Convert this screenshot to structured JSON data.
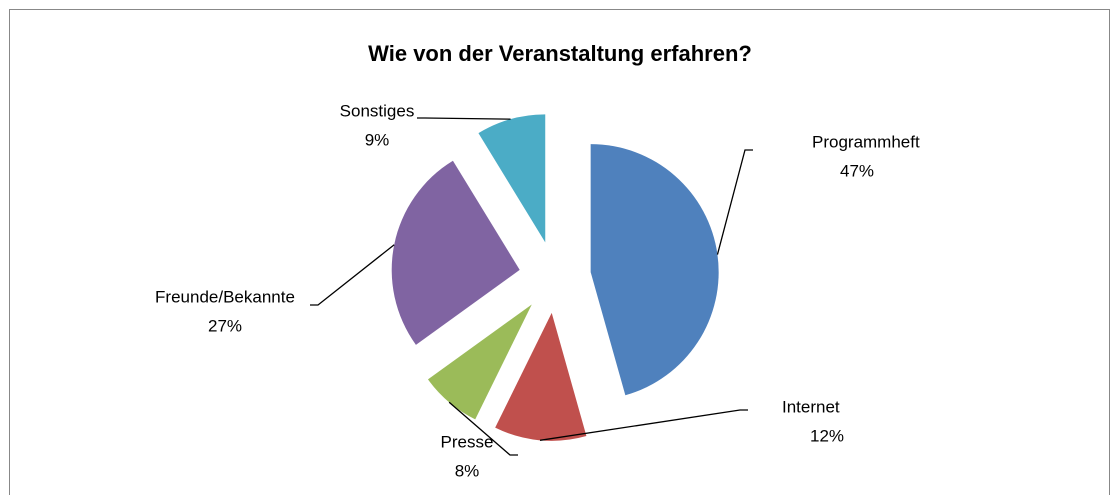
{
  "chart_data": {
    "type": "pie",
    "title": "Wie von der Veranstaltung erfahren?",
    "categories": [
      "Programmheft",
      "Internet",
      "Presse",
      "Freunde/Bekannte",
      "Sonstiges"
    ],
    "values": [
      47,
      12,
      8,
      27,
      9
    ],
    "value_labels": [
      "47%",
      "12%",
      "8%",
      "27%",
      "9%"
    ],
    "colors": [
      "#4f81bd",
      "#c0504d",
      "#9bbb59",
      "#8064a2",
      "#4bacc6"
    ]
  }
}
